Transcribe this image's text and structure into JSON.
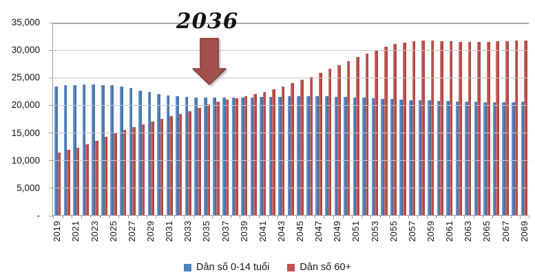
{
  "annotation": {
    "label": "2036"
  },
  "y_axis": {
    "tick_labels": [
      "35,000",
      "30,000",
      "25,000",
      "20,000",
      "15,000",
      "10,000",
      "5,000",
      "-"
    ]
  },
  "legend": {
    "items": [
      {
        "label": "Dân số 0-14 tuổi",
        "color": "#4F81BD"
      },
      {
        "label": "Dân số 60+",
        "color": "#C0504D"
      }
    ]
  },
  "chart_data": {
    "type": "bar",
    "title": "",
    "xlabel": "",
    "ylabel": "",
    "ylim": [
      0,
      35000
    ],
    "y_step": 5000,
    "grid": true,
    "legend_position": "bottom",
    "annotation": {
      "text": "2036",
      "target_year": 2036
    },
    "categories": [
      2019,
      2020,
      2021,
      2022,
      2023,
      2024,
      2025,
      2026,
      2027,
      2028,
      2029,
      2030,
      2031,
      2032,
      2033,
      2034,
      2035,
      2036,
      2037,
      2038,
      2039,
      2040,
      2041,
      2042,
      2043,
      2044,
      2045,
      2046,
      2047,
      2048,
      2049,
      2050,
      2051,
      2052,
      2053,
      2054,
      2055,
      2056,
      2057,
      2058,
      2059,
      2060,
      2061,
      2062,
      2063,
      2064,
      2065,
      2066,
      2067,
      2068,
      2069
    ],
    "x_tick_labels": [
      "2019",
      "2021",
      "2023",
      "2025",
      "2027",
      "2029",
      "2031",
      "2033",
      "2035",
      "2037",
      "2039",
      "2041",
      "2043",
      "2045",
      "2047",
      "2049",
      "2051",
      "2053",
      "2055",
      "2057",
      "2059",
      "2061",
      "2063",
      "2065",
      "2067",
      "2069"
    ],
    "series": [
      {
        "name": "Dân số 0-14 tuổi",
        "color": "#4F81BD",
        "values": [
          23300,
          23550,
          23600,
          23650,
          23650,
          23600,
          23500,
          23350,
          23000,
          22600,
          22250,
          21950,
          21700,
          21500,
          21400,
          21300,
          21250,
          21250,
          21300,
          21350,
          21300,
          21350,
          21400,
          21400,
          21450,
          21500,
          21500,
          21550,
          21550,
          21500,
          21450,
          21400,
          21350,
          21250,
          21150,
          21100,
          21000,
          20900,
          20850,
          20800,
          20750,
          20700,
          20650,
          20600,
          20550,
          20500,
          20450,
          20400,
          20400,
          20450,
          20500
        ]
      },
      {
        "name": "Dân số 60+",
        "color": "#C0504D",
        "values": [
          11400,
          11800,
          12250,
          12800,
          13500,
          14200,
          14800,
          15450,
          15900,
          16500,
          17000,
          17400,
          17900,
          18300,
          18850,
          19450,
          20050,
          20550,
          20900,
          21200,
          21500,
          21900,
          22300,
          22800,
          23300,
          23900,
          24500,
          25100,
          25800,
          26500,
          27200,
          27900,
          28600,
          29300,
          29900,
          30500,
          31000,
          31300,
          31500,
          31600,
          31600,
          31550,
          31500,
          31450,
          31400,
          31400,
          31450,
          31500,
          31550,
          31600,
          31700
        ]
      }
    ]
  }
}
